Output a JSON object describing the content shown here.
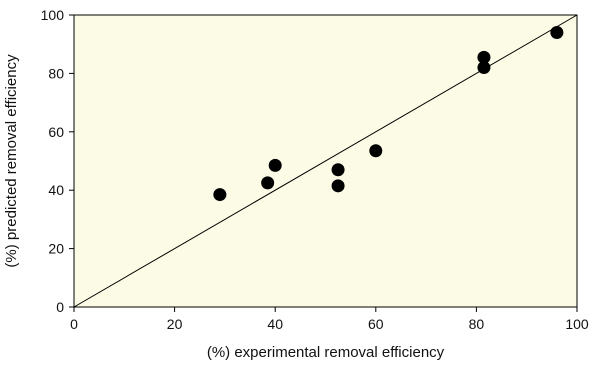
{
  "chart_data": {
    "type": "scatter",
    "title": "",
    "xlabel": "(%) experimental removal efficiency",
    "ylabel": "(%) predicted removal efficiency",
    "xlim": [
      0,
      100
    ],
    "ylim": [
      0,
      100
    ],
    "x_ticks": [
      "0",
      "20",
      "40",
      "60",
      "80",
      "100"
    ],
    "y_ticks": [
      "0",
      "20",
      "40",
      "60",
      "80",
      "100"
    ],
    "grid": false,
    "legend": "none",
    "colors": {
      "plot_background": "#fcfce6",
      "marker": "#000000",
      "axis": "#000000",
      "reference_line": "#000000"
    },
    "reference_line": {
      "x": [
        0,
        100
      ],
      "y": [
        0,
        100
      ]
    },
    "series": [
      {
        "points": [
          {
            "x": 29,
            "y": 38.5
          },
          {
            "x": 38.5,
            "y": 42.5
          },
          {
            "x": 40,
            "y": 48.5
          },
          {
            "x": 52.5,
            "y": 41.5
          },
          {
            "x": 52.5,
            "y": 47
          },
          {
            "x": 60,
            "y": 53.5
          },
          {
            "x": 81.5,
            "y": 85.5
          },
          {
            "x": 81.5,
            "y": 82
          },
          {
            "x": 96,
            "y": 94
          }
        ]
      }
    ]
  }
}
